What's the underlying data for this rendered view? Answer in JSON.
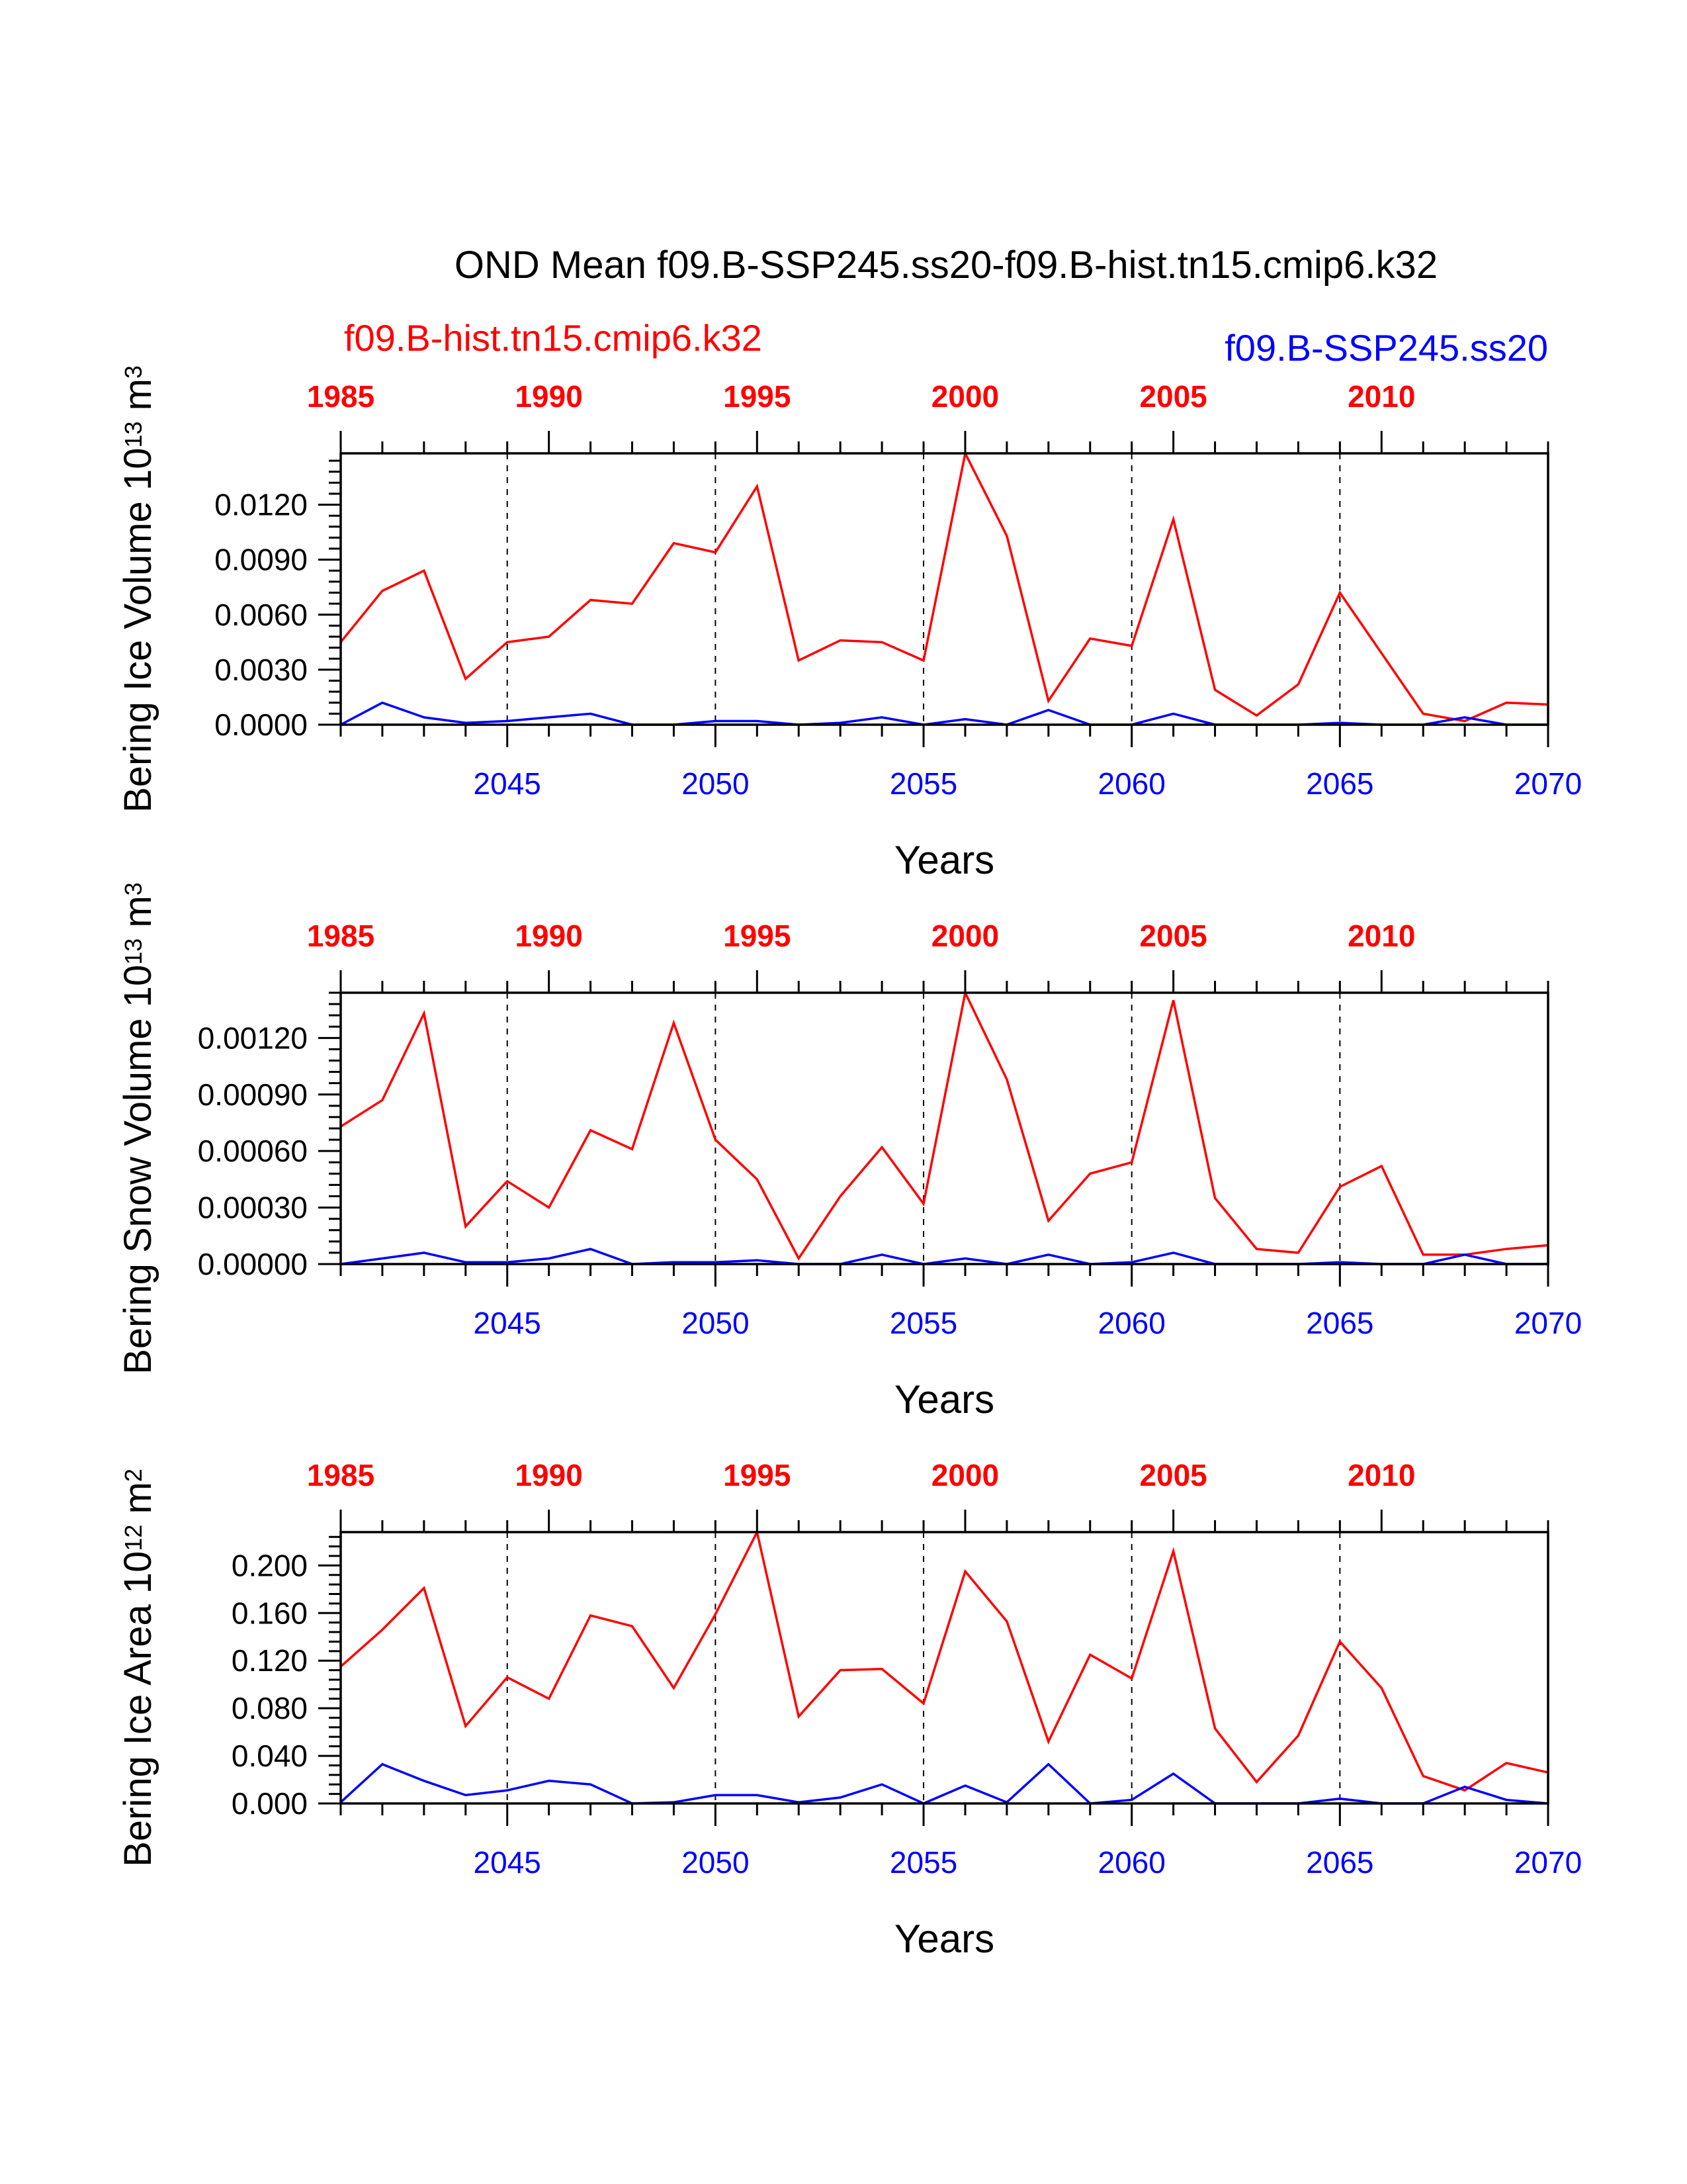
{
  "title": "OND Mean f09.B-SSP245.ss20-f09.B-hist.tn15.cmip6.k32",
  "legend": {
    "hist_label": "f09.B-hist.tn15.cmip6.k32",
    "ssp_label": "f09.B-SSP245.ss20"
  },
  "colors": {
    "hist": "#ff0000",
    "ssp": "#0000ff",
    "axis": "#000000",
    "grid": "#000000"
  },
  "chart_data": [
    {
      "type": "line",
      "ylabel_main": "Bering Ice Volume 10",
      "ylabel_exp": "13",
      "ylabel_unit": " m",
      "ylabel_unit_exp": "3",
      "xlabel": "Years",
      "ylim": [
        0,
        0.0148
      ],
      "yticks": [
        0.0,
        0.003,
        0.006,
        0.009,
        0.012
      ],
      "ytick_labels": [
        "0.0000",
        "0.0030",
        "0.0060",
        "0.0090",
        "0.0120"
      ],
      "bottom_xlim": [
        2041,
        2070
      ],
      "bottom_xticks": [
        2045,
        2050,
        2055,
        2060,
        2065,
        2070
      ],
      "bottom_xtick_labels": [
        "2045",
        "2050",
        "2055",
        "2060",
        "2065",
        "2070"
      ],
      "top_xlim": [
        1985,
        2014
      ],
      "top_xticks": [
        1985,
        1990,
        1995,
        2000,
        2005,
        2010
      ],
      "top_xtick_labels": [
        "1985",
        "1990",
        "1995",
        "2000",
        "2005",
        "2010"
      ],
      "vlines": [
        2045,
        2050,
        2055,
        2060,
        2065
      ],
      "series": [
        {
          "name": "f09.B-hist.tn15.cmip6.k32",
          "x_axis": "top",
          "x": [
            1985,
            1986,
            1987,
            1988,
            1989,
            1990,
            1991,
            1992,
            1993,
            1994,
            1995,
            1996,
            1997,
            1998,
            1999,
            2000,
            2001,
            2002,
            2003,
            2004,
            2005,
            2006,
            2007,
            2008,
            2009,
            2010,
            2011,
            2012,
            2013,
            2014
          ],
          "values": [
            0.0045,
            0.0073,
            0.0084,
            0.0025,
            0.0045,
            0.0048,
            0.0068,
            0.0066,
            0.0099,
            0.0094,
            0.013,
            0.0035,
            0.0046,
            0.0045,
            0.0035,
            0.0148,
            0.0103,
            0.0013,
            0.0047,
            0.0043,
            0.0112,
            0.0019,
            0.0005,
            0.0022,
            0.0072,
            0.0039,
            0.0006,
            0.0002,
            0.0012,
            0.0011
          ]
        },
        {
          "name": "f09.B-SSP245.ss20",
          "x_axis": "bottom",
          "x": [
            2041,
            2042,
            2043,
            2044,
            2045,
            2046,
            2047,
            2048,
            2049,
            2050,
            2051,
            2052,
            2053,
            2054,
            2055,
            2056,
            2057,
            2058,
            2059,
            2060,
            2061,
            2062,
            2063,
            2064,
            2065,
            2066,
            2067,
            2068,
            2069,
            2070
          ],
          "values": [
            0.0,
            0.0012,
            0.0004,
            0.0001,
            0.0002,
            0.0004,
            0.0006,
            0.0,
            0.0,
            0.0002,
            0.0002,
            0.0,
            0.0001,
            0.0004,
            0.0,
            0.0003,
            0.0,
            0.0008,
            0.0,
            0.0,
            0.0006,
            0.0,
            0.0,
            0.0,
            0.0001,
            0.0,
            0.0,
            0.0004,
            0.0,
            0.0
          ]
        }
      ]
    },
    {
      "type": "line",
      "ylabel_main": "Bering Snow Volume 10",
      "ylabel_exp": "13",
      "ylabel_unit": " m",
      "ylabel_unit_exp": "3",
      "xlabel": "Years",
      "ylim": [
        0,
        0.00144
      ],
      "yticks": [
        0.0,
        0.0003,
        0.0006,
        0.0009,
        0.0012
      ],
      "ytick_labels": [
        "0.00000",
        "0.00030",
        "0.00060",
        "0.00090",
        "0.00120"
      ],
      "bottom_xlim": [
        2041,
        2070
      ],
      "bottom_xticks": [
        2045,
        2050,
        2055,
        2060,
        2065,
        2070
      ],
      "bottom_xtick_labels": [
        "2045",
        "2050",
        "2055",
        "2060",
        "2065",
        "2070"
      ],
      "top_xlim": [
        1985,
        2014
      ],
      "top_xticks": [
        1985,
        1990,
        1995,
        2000,
        2005,
        2010
      ],
      "top_xtick_labels": [
        "1985",
        "1990",
        "1995",
        "2000",
        "2005",
        "2010"
      ],
      "vlines": [
        2045,
        2050,
        2055,
        2060,
        2065
      ],
      "series": [
        {
          "name": "f09.B-hist.tn15.cmip6.k32",
          "x_axis": "top",
          "x": [
            1985,
            1986,
            1987,
            1988,
            1989,
            1990,
            1991,
            1992,
            1993,
            1994,
            1995,
            1996,
            1997,
            1998,
            1999,
            2000,
            2001,
            2002,
            2003,
            2004,
            2005,
            2006,
            2007,
            2008,
            2009,
            2010,
            2011,
            2012,
            2013,
            2014
          ],
          "values": [
            0.00073,
            0.00087,
            0.00133,
            0.0002,
            0.00044,
            0.0003,
            0.00071,
            0.00061,
            0.00128,
            0.00066,
            0.00045,
            3e-05,
            0.00036,
            0.00062,
            0.00032,
            0.00144,
            0.00098,
            0.00023,
            0.00048,
            0.00054,
            0.0014,
            0.00035,
            8e-05,
            6e-05,
            0.00041,
            0.00052,
            5e-05,
            5e-05,
            8e-05,
            0.0001
          ]
        },
        {
          "name": "f09.B-SSP245.ss20",
          "x_axis": "bottom",
          "x": [
            2041,
            2042,
            2043,
            2044,
            2045,
            2046,
            2047,
            2048,
            2049,
            2050,
            2051,
            2052,
            2053,
            2054,
            2055,
            2056,
            2057,
            2058,
            2059,
            2060,
            2061,
            2062,
            2063,
            2064,
            2065,
            2066,
            2067,
            2068,
            2069,
            2070
          ],
          "values": [
            0.0,
            3e-05,
            6e-05,
            1e-05,
            1e-05,
            3e-05,
            8e-05,
            0.0,
            1e-05,
            1e-05,
            2e-05,
            0.0,
            0.0,
            5e-05,
            0.0,
            3e-05,
            0.0,
            5e-05,
            0.0,
            1e-05,
            6e-05,
            0.0,
            0.0,
            0.0,
            1e-05,
            0.0,
            0.0,
            5e-05,
            0.0,
            0.0
          ]
        }
      ]
    },
    {
      "type": "line",
      "ylabel_main": "Bering Ice Area 10",
      "ylabel_exp": "12",
      "ylabel_unit": " m",
      "ylabel_unit_exp": "2",
      "xlabel": "Years",
      "ylim": [
        0,
        0.228
      ],
      "yticks": [
        0.0,
        0.04,
        0.08,
        0.12,
        0.16,
        0.2
      ],
      "ytick_labels": [
        "0.000",
        "0.040",
        "0.080",
        "0.120",
        "0.160",
        "0.200"
      ],
      "bottom_xlim": [
        2041,
        2070
      ],
      "bottom_xticks": [
        2045,
        2050,
        2055,
        2060,
        2065,
        2070
      ],
      "bottom_xtick_labels": [
        "2045",
        "2050",
        "2055",
        "2060",
        "2065",
        "2070"
      ],
      "top_xlim": [
        1985,
        2014
      ],
      "top_xticks": [
        1985,
        1990,
        1995,
        2000,
        2005,
        2010
      ],
      "top_xtick_labels": [
        "1985",
        "1990",
        "1995",
        "2000",
        "2005",
        "2010"
      ],
      "vlines": [
        2045,
        2050,
        2055,
        2060,
        2065
      ],
      "series": [
        {
          "name": "f09.B-hist.tn15.cmip6.k32",
          "x_axis": "top",
          "x": [
            1985,
            1986,
            1987,
            1988,
            1989,
            1990,
            1991,
            1992,
            1993,
            1994,
            1995,
            1996,
            1997,
            1998,
            1999,
            2000,
            2001,
            2002,
            2003,
            2004,
            2005,
            2006,
            2007,
            2008,
            2009,
            2010,
            2011,
            2012,
            2013,
            2014
          ],
          "values": [
            0.115,
            0.146,
            0.181,
            0.065,
            0.106,
            0.088,
            0.158,
            0.149,
            0.097,
            0.159,
            0.228,
            0.073,
            0.112,
            0.113,
            0.084,
            0.195,
            0.153,
            0.052,
            0.125,
            0.105,
            0.212,
            0.063,
            0.018,
            0.057,
            0.136,
            0.097,
            0.023,
            0.011,
            0.034,
            0.026
          ]
        },
        {
          "name": "f09.B-SSP245.ss20",
          "x_axis": "bottom",
          "x": [
            2041,
            2042,
            2043,
            2044,
            2045,
            2046,
            2047,
            2048,
            2049,
            2050,
            2051,
            2052,
            2053,
            2054,
            2055,
            2056,
            2057,
            2058,
            2059,
            2060,
            2061,
            2062,
            2063,
            2064,
            2065,
            2066,
            2067,
            2068,
            2069,
            2070
          ],
          "values": [
            0.001,
            0.033,
            0.019,
            0.007,
            0.011,
            0.019,
            0.016,
            0.0,
            0.001,
            0.007,
            0.007,
            0.001,
            0.005,
            0.016,
            0.0,
            0.015,
            0.001,
            0.033,
            0.0,
            0.003,
            0.025,
            0.0,
            0.0,
            0.0,
            0.004,
            0.0,
            0.0,
            0.014,
            0.003,
            0.0
          ]
        }
      ]
    }
  ]
}
